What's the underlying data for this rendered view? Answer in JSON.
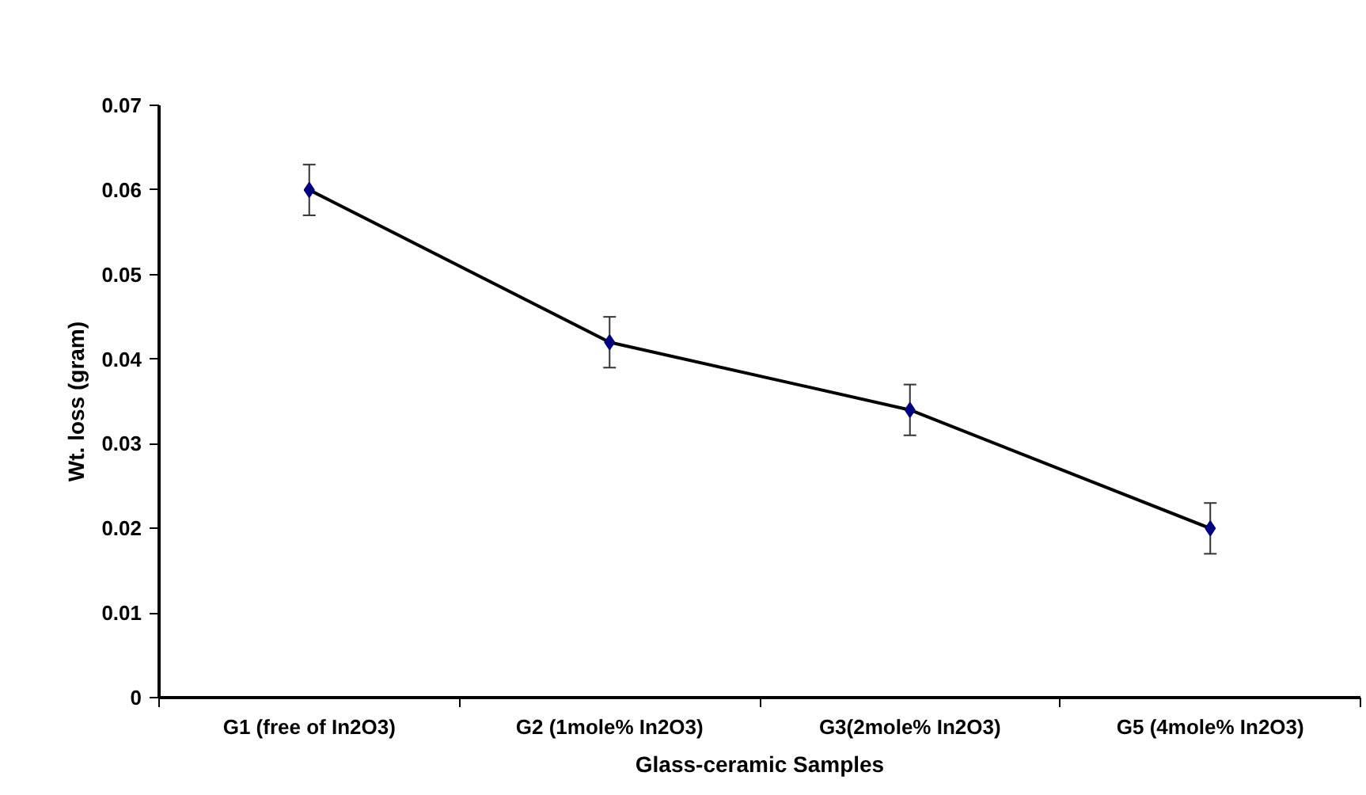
{
  "chart_data": {
    "type": "line",
    "xlabel": "Glass-ceramic Samples",
    "ylabel": "Wt. loss (gram)",
    "categories": [
      "G1 (free of In2O3)",
      "G2 (1mole% In2O3)",
      "G3(2mole% In2O3)",
      "G5 (4mole% In2O3)"
    ],
    "series": [
      {
        "color": "#000080",
        "values": [
          0.06,
          0.042,
          0.034,
          0.02
        ],
        "errors": [
          0.003,
          0.003,
          0.003,
          0.003
        ]
      }
    ],
    "ylim": [
      0,
      0.07
    ],
    "yticks": [
      0,
      0.01,
      0.02,
      0.03,
      0.04,
      0.05,
      0.06,
      0.07
    ],
    "marker": "diamond",
    "line_style": "solid"
  }
}
